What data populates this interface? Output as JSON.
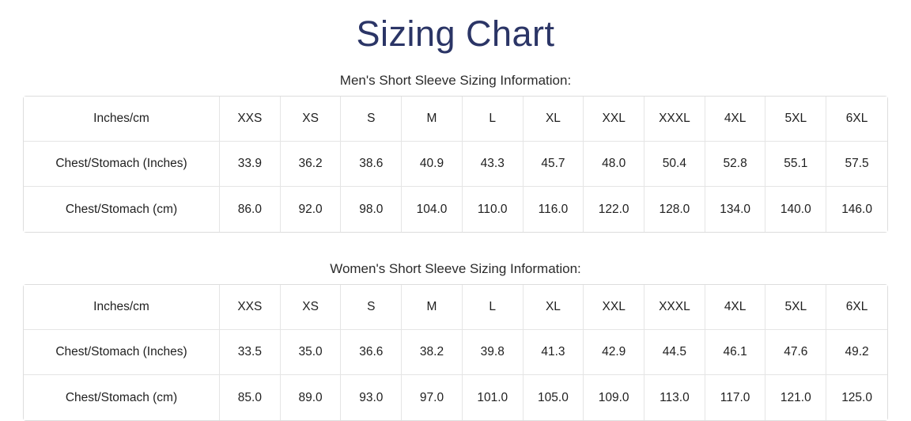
{
  "page": {
    "title": "Sizing Chart"
  },
  "colors": {
    "title": "#2b3566",
    "text": "#1f1f1f",
    "border": "#e0e0e0"
  },
  "sections": {
    "men": {
      "heading": "Men's Short Sleeve Sizing Information:",
      "header": [
        "Inches/cm",
        "XXS",
        "XS",
        "S",
        "M",
        "L",
        "XL",
        "XXL",
        "XXXL",
        "4XL",
        "5XL",
        "6XL"
      ],
      "rows": [
        {
          "label": "Chest/Stomach (Inches)",
          "values": [
            "33.9",
            "36.2",
            "38.6",
            "40.9",
            "43.3",
            "45.7",
            "48.0",
            "50.4",
            "52.8",
            "55.1",
            "57.5"
          ]
        },
        {
          "label": "Chest/Stomach (cm)",
          "values": [
            "86.0",
            "92.0",
            "98.0",
            "104.0",
            "110.0",
            "116.0",
            "122.0",
            "128.0",
            "134.0",
            "140.0",
            "146.0"
          ]
        }
      ]
    },
    "women": {
      "heading": "Women's Short Sleeve Sizing Information:",
      "header": [
        "Inches/cm",
        "XXS",
        "XS",
        "S",
        "M",
        "L",
        "XL",
        "XXL",
        "XXXL",
        "4XL",
        "5XL",
        "6XL"
      ],
      "rows": [
        {
          "label": "Chest/Stomach (Inches)",
          "values": [
            "33.5",
            "35.0",
            "36.6",
            "38.2",
            "39.8",
            "41.3",
            "42.9",
            "44.5",
            "46.1",
            "47.6",
            "49.2"
          ]
        },
        {
          "label": "Chest/Stomach (cm)",
          "values": [
            "85.0",
            "89.0",
            "93.0",
            "97.0",
            "101.0",
            "105.0",
            "109.0",
            "113.0",
            "117.0",
            "121.0",
            "125.0"
          ]
        }
      ]
    }
  }
}
